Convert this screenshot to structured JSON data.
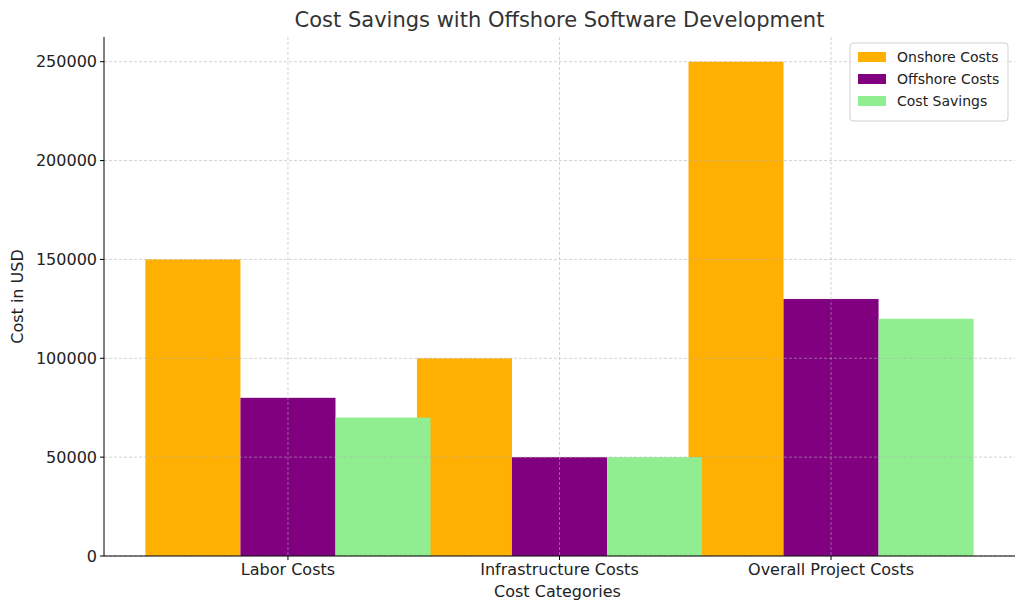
{
  "chart_data": {
    "type": "bar",
    "title": "Cost Savings with Offshore Software Development",
    "x_label": "Cost Categories",
    "y_label": "Cost in USD",
    "categories": [
      "Labor Costs",
      "Infrastructure Costs",
      "Overall Project Costs"
    ],
    "series": [
      {
        "name": "Onshore Costs",
        "color": "#ffb000",
        "values": [
          150000,
          100000,
          250000
        ]
      },
      {
        "name": "Offshore Costs",
        "color": "#800080",
        "values": [
          80000,
          50000,
          130000
        ]
      },
      {
        "name": "Cost Savings",
        "color": "#90ee90",
        "values": [
          70000,
          50000,
          120000
        ]
      }
    ],
    "ylim": [
      0,
      262500
    ],
    "yticks": [
      0,
      50000,
      100000,
      150000,
      200000,
      250000
    ],
    "grid": true,
    "legend": "upper right"
  }
}
